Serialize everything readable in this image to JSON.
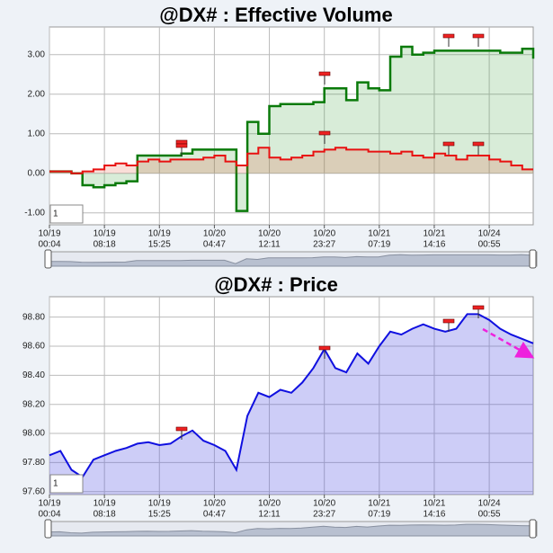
{
  "chart_data": [
    {
      "type": "line",
      "title": "@DX# : Effective Volume",
      "zoom_input": "1",
      "x": [
        0,
        2,
        4,
        6,
        8,
        10,
        12,
        14,
        16,
        18,
        20,
        22,
        24,
        26,
        28,
        30,
        32,
        34,
        36,
        38,
        40,
        42,
        44,
        46,
        48,
        50,
        52,
        54,
        56,
        58,
        60,
        62,
        64,
        66,
        68,
        70,
        72,
        74,
        76,
        78,
        80,
        82,
        84,
        86,
        88
      ],
      "xlim": [
        0,
        88
      ],
      "xticks": [
        {
          "value": 0,
          "label": [
            "10/19",
            "00:04"
          ]
        },
        {
          "value": 10,
          "label": [
            "10/19",
            "08:18"
          ]
        },
        {
          "value": 20,
          "label": [
            "10/19",
            "15:25"
          ]
        },
        {
          "value": 30,
          "label": [
            "10/20",
            "04:47"
          ]
        },
        {
          "value": 40,
          "label": [
            "10/20",
            "12:11"
          ]
        },
        {
          "value": 50,
          "label": [
            "10/20",
            "23:27"
          ]
        },
        {
          "value": 60,
          "label": [
            "10/21",
            "07:19"
          ]
        },
        {
          "value": 70,
          "label": [
            "10/21",
            "14:16"
          ]
        },
        {
          "value": 80,
          "label": [
            "10/24",
            "00:55"
          ]
        }
      ],
      "ylim": [
        -1.3,
        3.7
      ],
      "yticks": [
        {
          "value": -1,
          "label": "-1.00"
        },
        {
          "value": 0,
          "label": "0.00"
        },
        {
          "value": 1,
          "label": "1.00"
        },
        {
          "value": 2,
          "label": "2.00"
        },
        {
          "value": 3,
          "label": "3.00"
        }
      ],
      "grid": true,
      "series": [
        {
          "color": "#0a7a0a",
          "fill_color": "rgba(60,160,60,0.2)",
          "values": [
            0.05,
            0.05,
            0.0,
            -0.3,
            -0.35,
            -0.3,
            -0.25,
            -0.2,
            0.45,
            0.45,
            0.45,
            0.45,
            0.5,
            0.6,
            0.6,
            0.6,
            0.6,
            -0.95,
            1.3,
            1.0,
            1.7,
            1.75,
            1.75,
            1.75,
            1.8,
            2.15,
            2.15,
            1.85,
            2.3,
            2.15,
            2.1,
            2.95,
            3.2,
            3.0,
            3.05,
            3.1,
            3.1,
            3.1,
            3.1,
            3.1,
            3.1,
            3.05,
            3.05,
            3.15,
            2.9
          ]
        },
        {
          "color": "#e81010",
          "fill_color": "rgba(230,90,60,0.2)",
          "values": [
            0.05,
            0.05,
            0.0,
            0.05,
            0.1,
            0.2,
            0.25,
            0.2,
            0.3,
            0.35,
            0.3,
            0.35,
            0.35,
            0.35,
            0.4,
            0.45,
            0.3,
            0.2,
            0.5,
            0.65,
            0.4,
            0.35,
            0.4,
            0.45,
            0.55,
            0.6,
            0.65,
            0.6,
            0.6,
            0.55,
            0.55,
            0.5,
            0.55,
            0.45,
            0.4,
            0.5,
            0.45,
            0.35,
            0.45,
            0.45,
            0.35,
            0.3,
            0.2,
            0.1,
            0.1
          ]
        }
      ]
    },
    {
      "type": "line",
      "title": "@DX# : Price",
      "zoom_input": "1",
      "x": [
        0,
        2,
        4,
        6,
        8,
        10,
        12,
        14,
        16,
        18,
        20,
        22,
        24,
        26,
        28,
        30,
        32,
        34,
        36,
        38,
        40,
        42,
        44,
        46,
        48,
        50,
        52,
        54,
        56,
        58,
        60,
        62,
        64,
        66,
        68,
        70,
        72,
        74,
        76,
        78,
        80,
        82,
        84,
        86,
        88
      ],
      "xlim": [
        0,
        88
      ],
      "xticks": [
        {
          "value": 0,
          "label": [
            "10/19",
            "00:04"
          ]
        },
        {
          "value": 10,
          "label": [
            "10/19",
            "08:18"
          ]
        },
        {
          "value": 20,
          "label": [
            "10/19",
            "15:25"
          ]
        },
        {
          "value": 30,
          "label": [
            "10/20",
            "04:47"
          ]
        },
        {
          "value": 40,
          "label": [
            "10/20",
            "12:11"
          ]
        },
        {
          "value": 50,
          "label": [
            "10/20",
            "23:27"
          ]
        },
        {
          "value": 60,
          "label": [
            "10/21",
            "07:19"
          ]
        },
        {
          "value": 70,
          "label": [
            "10/21",
            "14:16"
          ]
        },
        {
          "value": 80,
          "label": [
            "10/24",
            "00:55"
          ]
        }
      ],
      "ylim": [
        97.58,
        98.94
      ],
      "yticks": [
        {
          "value": 97.6,
          "label": "97.60"
        },
        {
          "value": 97.8,
          "label": "97.80"
        },
        {
          "value": 98.0,
          "label": "98.00"
        },
        {
          "value": 98.2,
          "label": "98.20"
        },
        {
          "value": 98.4,
          "label": "98.40"
        },
        {
          "value": 98.6,
          "label": "98.60"
        },
        {
          "value": 98.8,
          "label": "98.80"
        }
      ],
      "grid": true,
      "series": [
        {
          "color": "#1010e0",
          "fill_color": "rgba(90,90,230,0.3)",
          "values": [
            97.85,
            97.88,
            97.75,
            97.7,
            97.82,
            97.85,
            97.88,
            97.9,
            97.93,
            97.94,
            97.92,
            97.93,
            97.98,
            98.02,
            97.95,
            97.92,
            97.88,
            97.75,
            98.12,
            98.28,
            98.25,
            98.3,
            98.28,
            98.35,
            98.45,
            98.58,
            98.45,
            98.42,
            98.55,
            98.48,
            98.6,
            98.7,
            98.68,
            98.72,
            98.75,
            98.72,
            98.7,
            98.72,
            98.82,
            98.82,
            98.78,
            98.72,
            98.68,
            98.65,
            98.62
          ]
        }
      ]
    }
  ]
}
